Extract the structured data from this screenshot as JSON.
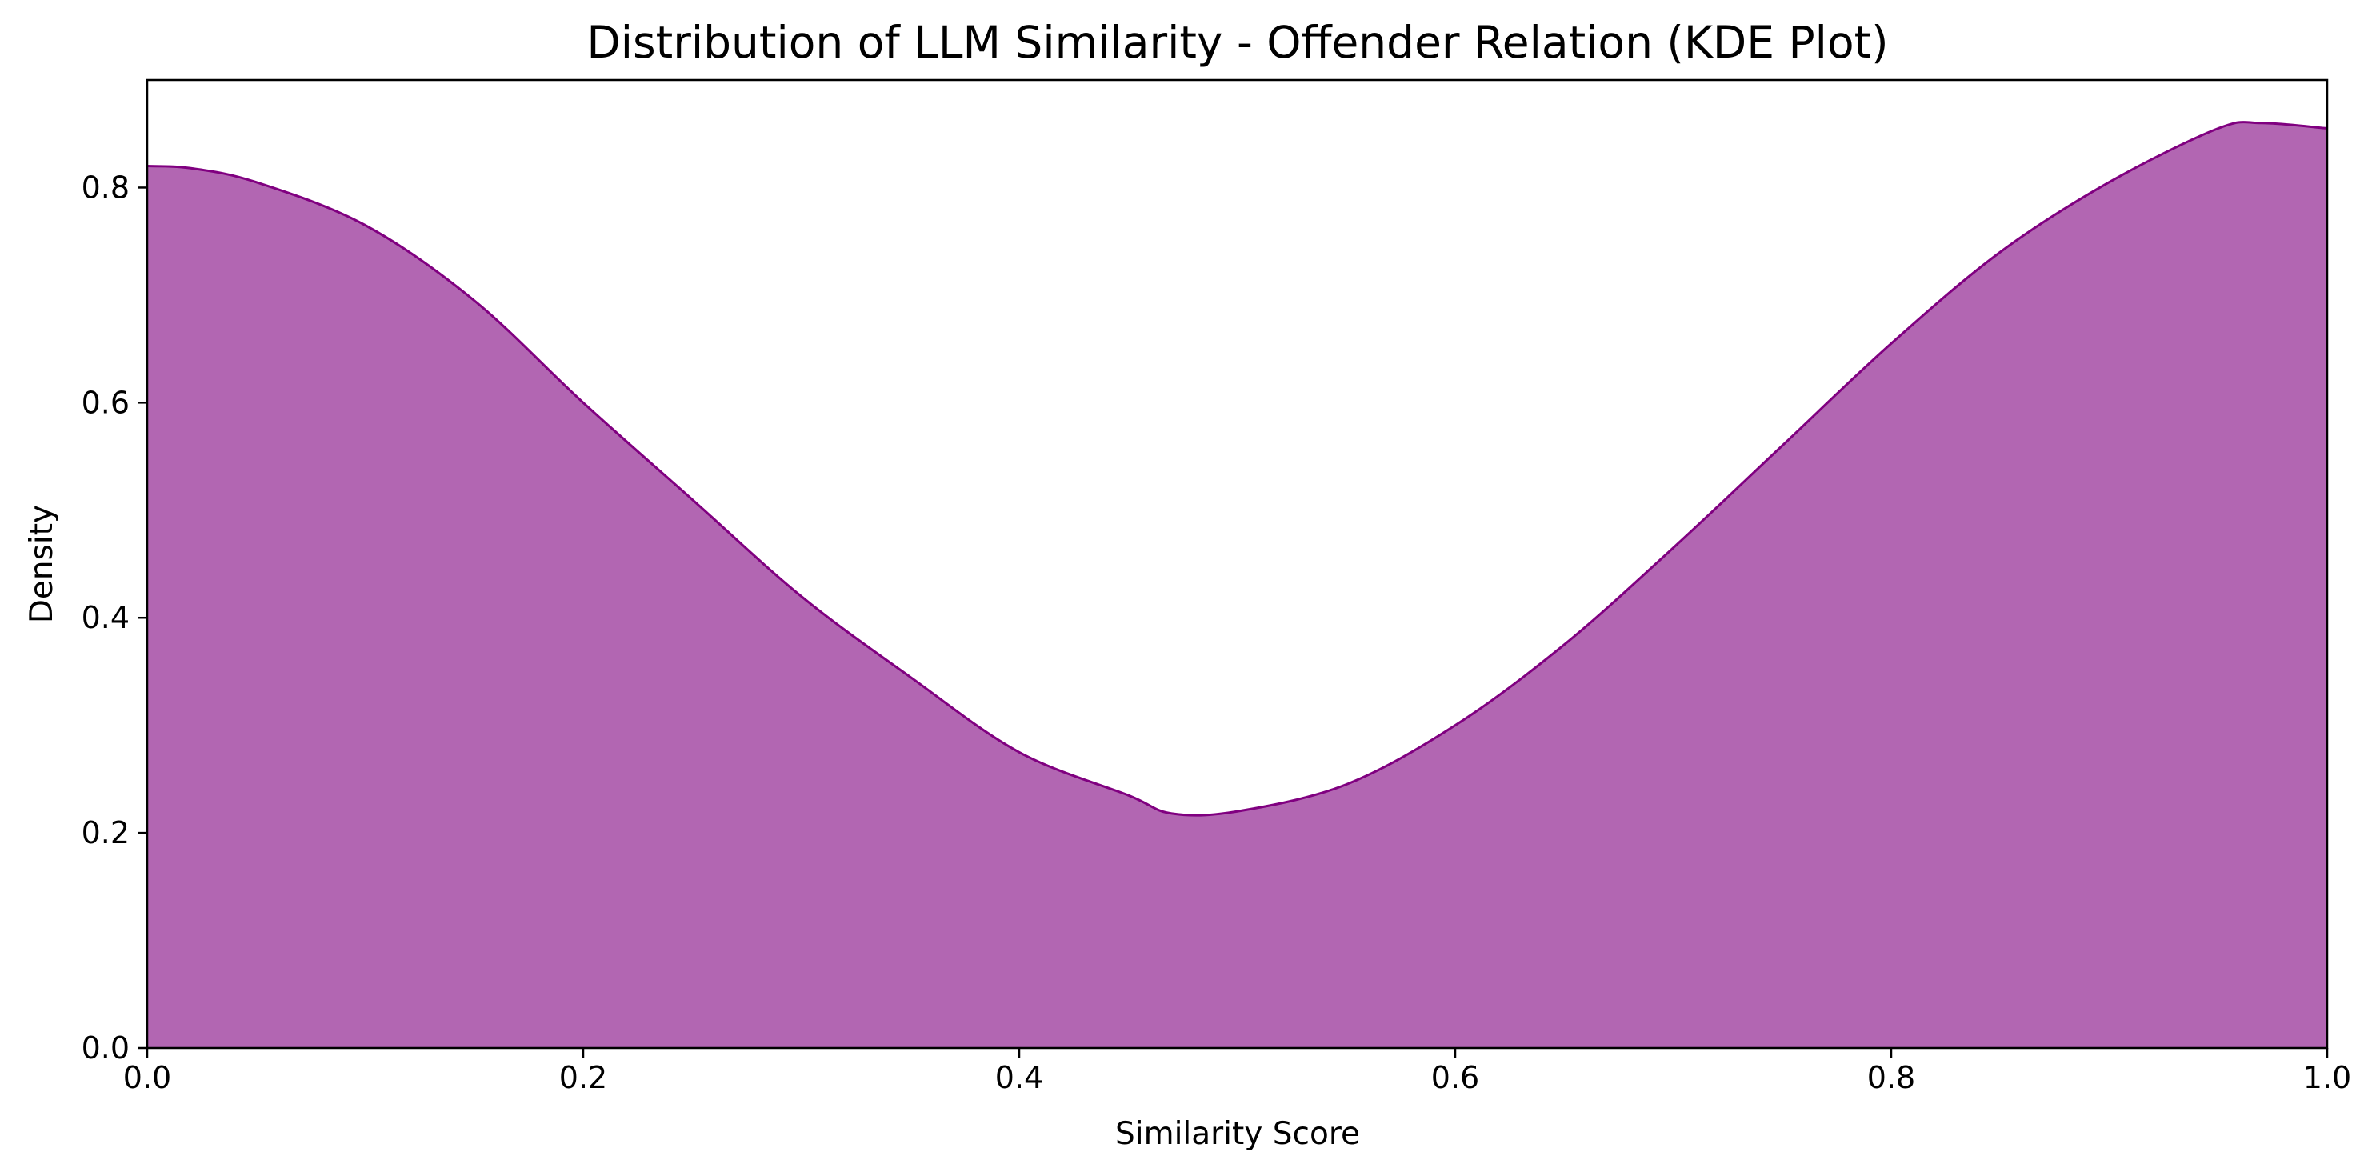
{
  "chart_data": {
    "type": "area",
    "title": "Distribution of LLM Similarity - Offender Relation (KDE Plot)",
    "xlabel": "Similarity Score",
    "ylabel": "Density",
    "xlim": [
      0,
      1
    ],
    "ylim": [
      0,
      0.9
    ],
    "xticks": [
      0.0,
      0.2,
      0.4,
      0.6,
      0.8,
      1.0
    ],
    "xtick_labels": [
      "0.0",
      "0.2",
      "0.4",
      "0.6",
      "0.8",
      "1.0"
    ],
    "yticks": [
      0.0,
      0.2,
      0.4,
      0.6,
      0.8
    ],
    "ytick_labels": [
      "0.0",
      "0.2",
      "0.4",
      "0.6",
      "0.8"
    ],
    "grid": false,
    "legend": "none",
    "series": [
      {
        "fill_color": "#b266b2",
        "line_color": "#800080",
        "x": [
          0.0,
          0.02,
          0.05,
          0.1,
          0.15,
          0.2,
          0.25,
          0.3,
          0.35,
          0.4,
          0.45,
          0.47,
          0.5,
          0.55,
          0.6,
          0.65,
          0.7,
          0.75,
          0.8,
          0.85,
          0.9,
          0.95,
          0.97,
          1.0
        ],
        "y": [
          0.82,
          0.818,
          0.805,
          0.765,
          0.695,
          0.6,
          0.51,
          0.42,
          0.345,
          0.275,
          0.235,
          0.218,
          0.22,
          0.245,
          0.3,
          0.375,
          0.465,
          0.56,
          0.655,
          0.74,
          0.805,
          0.855,
          0.86,
          0.855
        ]
      }
    ]
  }
}
